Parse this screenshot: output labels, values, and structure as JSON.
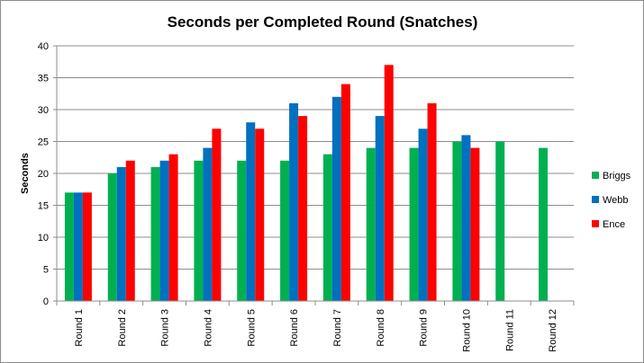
{
  "chart_data": {
    "type": "bar",
    "title": "Seconds per Completed Round (Snatches)",
    "xlabel": "",
    "ylabel": "Seconds",
    "ylim": [
      0,
      40
    ],
    "yticks": [
      0,
      5,
      10,
      15,
      20,
      25,
      30,
      35,
      40
    ],
    "grid": "horizontal",
    "legend_position": "right",
    "categories": [
      "Round 1",
      "Round 2",
      "Round 3",
      "Round 4",
      "Round 5",
      "Round 6",
      "Round 7",
      "Round 8",
      "Round 9",
      "Round 10",
      "Round 11",
      "Round 12"
    ],
    "series": [
      {
        "name": "Briggs",
        "color": "#00b050",
        "values": [
          17,
          20,
          21,
          22,
          22,
          22,
          23,
          24,
          24,
          25,
          25,
          24
        ]
      },
      {
        "name": "Webb",
        "color": "#0070c0",
        "values": [
          17,
          21,
          22,
          24,
          28,
          31,
          32,
          29,
          27,
          26,
          null,
          null
        ]
      },
      {
        "name": "Ence",
        "color": "#ff0000",
        "values": [
          17,
          22,
          23,
          27,
          27,
          29,
          34,
          37,
          31,
          24,
          null,
          null
        ]
      }
    ]
  }
}
